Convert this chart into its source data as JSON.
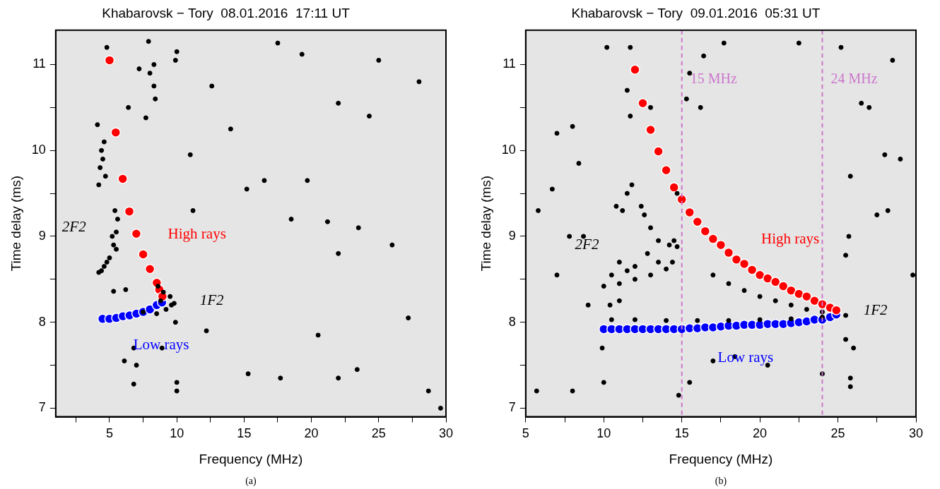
{
  "chart_data": [
    {
      "type": "scatter",
      "title": "Khabarovsk − Tory  08.01.2016  17:11 UT",
      "xlabel": "Frequency (MHz)",
      "ylabel": "Time delay (ms)",
      "xlim": [
        1,
        30
      ],
      "ylim": [
        6.9,
        11.4
      ],
      "xticks": [
        {
          "value": 2.5,
          "label": null
        },
        5,
        {
          "value": 7.5,
          "label": null
        },
        10,
        {
          "value": 12.5,
          "label": null
        },
        15,
        {
          "value": 17.5,
          "label": null
        },
        20,
        {
          "value": 22.5,
          "label": null
        },
        25,
        {
          "value": 27.5,
          "label": null
        },
        30
      ],
      "yticks": [
        7,
        {
          "value": 7.5,
          "label": null
        },
        8,
        {
          "value": 8.5,
          "label": null
        },
        9,
        {
          "value": 9.5,
          "label": null
        },
        10,
        {
          "value": 10.5,
          "label": null
        },
        11
      ],
      "grid": false,
      "legend": false,
      "marker": "circle",
      "series": [
        {
          "color": "#000000",
          "x": [
            4.2,
            4.6,
            5.0,
            5.3,
            5.5,
            5.6,
            5.4,
            5.2,
            4.8,
            5.5,
            4.4,
            4.2,
            4.3,
            4.5,
            4.4,
            4.6,
            4.1,
            4.7,
            7.5,
            8.5,
            9.2,
            9.6,
            9.5,
            9.0,
            8.6,
            8.8,
            9.8,
            4.8,
            7.9,
            8.0,
            8.4,
            8.3,
            7.2,
            8.3,
            7.7,
            6.4,
            10.0,
            9.9,
            12.6,
            14.0,
            11.0,
            15.2,
            16.5,
            19.7,
            17.5,
            19.3,
            22.0,
            24.3,
            28.0,
            25.0,
            21.2,
            23.5,
            26.0,
            18.5,
            22.0,
            27.2,
            20.5,
            15.3,
            17.7,
            22.0,
            23.4,
            28.7,
            29.6,
            10.0,
            10.0,
            7.0,
            6.1,
            6.8,
            9.9,
            8.9,
            6.2,
            5.3,
            6.8,
            12.2,
            11.2
          ],
          "values": [
            8.58,
            8.65,
            8.75,
            8.9,
            9.05,
            9.2,
            9.3,
            9.0,
            8.7,
            8.85,
            8.6,
            9.6,
            9.8,
            9.9,
            10.0,
            10.1,
            10.3,
            9.7,
            8.12,
            8.1,
            8.15,
            8.2,
            8.3,
            8.35,
            8.42,
            8.25,
            8.22,
            11.2,
            11.27,
            10.9,
            10.6,
            10.75,
            10.95,
            11.0,
            10.38,
            10.5,
            11.15,
            11.05,
            10.75,
            10.25,
            9.95,
            9.55,
            9.65,
            9.65,
            11.25,
            11.12,
            10.55,
            10.4,
            10.8,
            11.05,
            9.17,
            9.1,
            8.9,
            9.2,
            8.8,
            8.05,
            7.85,
            7.4,
            7.35,
            7.35,
            7.45,
            7.2,
            7.0,
            7.3,
            7.2,
            7.5,
            7.55,
            7.28,
            8.0,
            7.7,
            8.38,
            8.36,
            7.7,
            7.9,
            9.3
          ]
        },
        {
          "name": "High rays",
          "color": "#ff0000",
          "x": [
            5.0,
            5.46,
            5.98,
            6.47,
            6.99,
            7.5,
            8.0,
            8.51,
            8.7,
            8.93
          ],
          "values": [
            11.05,
            10.21,
            9.67,
            9.29,
            9.03,
            8.79,
            8.62,
            8.46,
            8.38,
            8.3
          ]
        },
        {
          "name": "Low rays",
          "color": "#0000ff",
          "x": [
            4.48,
            4.99,
            5.5,
            5.99,
            6.49,
            7.0,
            7.5,
            8.0,
            8.51,
            8.9
          ],
          "values": [
            8.04,
            8.04,
            8.05,
            8.07,
            8.08,
            8.1,
            8.12,
            8.15,
            8.2,
            8.23
          ]
        }
      ],
      "annotations": [
        "2F2",
        "1F2",
        "(a)"
      ]
    },
    {
      "type": "scatter",
      "title": "Khabarovsk − Tory  09.01.2016  05:31 UT",
      "xlabel": "Frequency (MHz)",
      "ylabel": "Time delay (ms)",
      "xlim": [
        5,
        30
      ],
      "ylim": [
        6.9,
        11.4
      ],
      "xticks": [
        5,
        {
          "value": 7.5,
          "label": null
        },
        10,
        {
          "value": 12.5,
          "label": null
        },
        15,
        {
          "value": 17.5,
          "label": null
        },
        20,
        {
          "value": 22.5,
          "label": null
        },
        25,
        {
          "value": 27.5,
          "label": null
        },
        30
      ],
      "yticks": [
        7,
        {
          "value": 7.5,
          "label": null
        },
        8,
        {
          "value": 8.5,
          "label": null
        },
        9,
        {
          "value": 9.5,
          "label": null
        },
        10,
        {
          "value": 10.5,
          "label": null
        },
        11
      ],
      "grid": false,
      "legend": false,
      "marker": "circle",
      "series": [
        {
          "color": "#000000",
          "x": [
            10,
            11,
            12,
            13,
            14,
            14.4,
            14.2,
            13.5,
            13,
            12.6,
            12.4,
            12.8,
            11.5,
            10.5,
            11,
            12,
            13.5,
            11.2,
            11.5,
            11.8,
            10.8,
            10.4,
            11,
            14.5,
            14.7,
            10.5,
            12,
            14,
            16,
            18,
            20,
            22,
            24,
            25.5,
            17,
            18,
            19,
            20,
            21,
            22,
            23,
            24,
            5.8,
            7,
            8,
            8.4,
            6.7,
            10.2,
            11.7,
            11.5,
            11.7,
            13,
            14.7,
            15.3,
            16.2,
            15.5,
            16.4,
            17.7,
            22.5,
            25.2,
            28.5,
            27,
            26.5,
            28,
            25.8,
            29,
            27.5,
            28.2,
            25.7,
            25.5,
            29.8,
            26,
            25.5,
            25.8,
            25.8,
            24,
            20.5,
            18.4,
            17,
            15.5,
            14.8,
            10,
            8,
            5.7,
            9.9,
            7,
            9,
            7.8,
            8.7
          ],
          "values": [
            8.42,
            8.45,
            8.5,
            8.55,
            8.62,
            8.7,
            8.9,
            8.95,
            9.1,
            9.25,
            9.35,
            8.8,
            8.6,
            8.55,
            8.7,
            8.65,
            8.7,
            9.3,
            9.5,
            9.6,
            9.35,
            8.2,
            8.25,
            8.95,
            8.88,
            8.03,
            8.03,
            8.02,
            8.02,
            8.02,
            8.03,
            8.04,
            8.06,
            8.08,
            8.55,
            8.45,
            8.37,
            8.3,
            8.25,
            8.2,
            8.15,
            8.12,
            9.3,
            10.2,
            10.28,
            9.85,
            9.55,
            11.2,
            11.2,
            10.7,
            10.4,
            10.5,
            9.5,
            10.6,
            10.5,
            10.9,
            11.1,
            11.25,
            11.25,
            11.2,
            11.05,
            10.5,
            10.55,
            9.95,
            9.7,
            9.9,
            9.25,
            9.3,
            9.0,
            8.78,
            8.55,
            7.7,
            7.8,
            7.35,
            7.25,
            7.4,
            7.5,
            7.6,
            7.55,
            7.3,
            7.15,
            7.3,
            7.2,
            7.2,
            7.7,
            8.55,
            8.2,
            9.0,
            9.0
          ]
        },
        {
          "name": "High rays",
          "color": "#ff0000",
          "x": [
            12,
            12.5,
            13,
            13.5,
            14,
            14.5,
            15,
            15.5,
            16,
            16.5,
            17,
            17.5,
            18,
            18.5,
            19,
            19.5,
            20,
            20.5,
            21,
            21.5,
            22,
            22.5,
            23,
            23.5,
            24,
            24.5,
            24.9
          ],
          "values": [
            10.94,
            10.55,
            10.24,
            9.99,
            9.77,
            9.57,
            9.43,
            9.28,
            9.17,
            9.06,
            8.97,
            8.9,
            8.81,
            8.73,
            8.68,
            8.61,
            8.55,
            8.51,
            8.47,
            8.42,
            8.37,
            8.33,
            8.3,
            8.25,
            8.21,
            8.17,
            8.14
          ]
        },
        {
          "name": "Low rays",
          "color": "#0000ff",
          "x": [
            10,
            10.5,
            11,
            11.5,
            12,
            12.5,
            13,
            13.5,
            14,
            14.5,
            15,
            15.5,
            16,
            16.5,
            17,
            17.5,
            18,
            18.5,
            19,
            19.5,
            20,
            20.5,
            21,
            21.5,
            22,
            22.5,
            23,
            23.5,
            24,
            24.5,
            24.9
          ],
          "values": [
            7.92,
            7.92,
            7.92,
            7.92,
            7.92,
            7.92,
            7.92,
            7.92,
            7.92,
            7.92,
            7.92,
            7.93,
            7.93,
            7.94,
            7.94,
            7.95,
            7.96,
            7.96,
            7.97,
            7.97,
            7.97,
            7.98,
            7.98,
            7.98,
            7.99,
            8.0,
            8.01,
            8.03,
            8.03,
            8.06,
            8.09
          ]
        }
      ],
      "ref_lines": [
        {
          "axis": "x",
          "value": 15,
          "label": "15 MHz",
          "color": "#cc77cc",
          "line_style": "dashed"
        },
        {
          "axis": "x",
          "value": 24,
          "label": "24 MHz",
          "color": "#cc77cc",
          "line_style": "dashed"
        }
      ],
      "annotations": [
        "2F2",
        "1F2",
        "(b)"
      ]
    }
  ]
}
